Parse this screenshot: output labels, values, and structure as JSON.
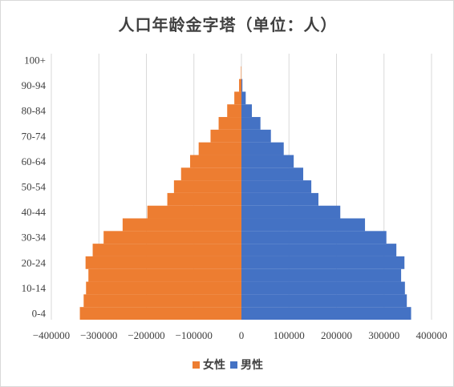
{
  "chart_data": {
    "type": "bar",
    "orientation": "horizontal",
    "layout": "population-pyramid",
    "title": "人口年龄金字塔（单位：人）",
    "categories": [
      "0-4",
      "5-9",
      "10-14",
      "15-19",
      "20-24",
      "25-29",
      "30-34",
      "35-39",
      "40-44",
      "45-49",
      "50-54",
      "55-59",
      "60-64",
      "65-69",
      "70-74",
      "75-79",
      "80-84",
      "85-89",
      "90-94",
      "95-99",
      "100+"
    ],
    "category_tick_labels": [
      "0-4",
      "10-14",
      "20-24",
      "30-34",
      "40-44",
      "50-54",
      "60-64",
      "70-74",
      "80-84",
      "90-94",
      "100+"
    ],
    "series": [
      {
        "name": "女性",
        "color": "#ED7D31",
        "values": [
          -340000,
          -332000,
          -327000,
          -322000,
          -328000,
          -313000,
          -290000,
          -250000,
          -198000,
          -156000,
          -142000,
          -127000,
          -108000,
          -90000,
          -65000,
          -48000,
          -30000,
          -15000,
          -5000,
          -1000,
          0
        ]
      },
      {
        "name": "男性",
        "color": "#4472C4",
        "values": [
          357000,
          348000,
          344000,
          336000,
          343000,
          326000,
          305000,
          260000,
          208000,
          162000,
          147000,
          130000,
          110000,
          89000,
          62000,
          40000,
          22000,
          9000,
          2000,
          0,
          0
        ]
      }
    ],
    "x_ticks": [
      "-400000",
      "-300000",
      "-200000",
      "-100000",
      "0",
      "100000",
      "200000",
      "300000",
      "400000"
    ],
    "xlim": [
      -400000,
      400000
    ],
    "grid": "vertical",
    "legend": "bottom"
  }
}
